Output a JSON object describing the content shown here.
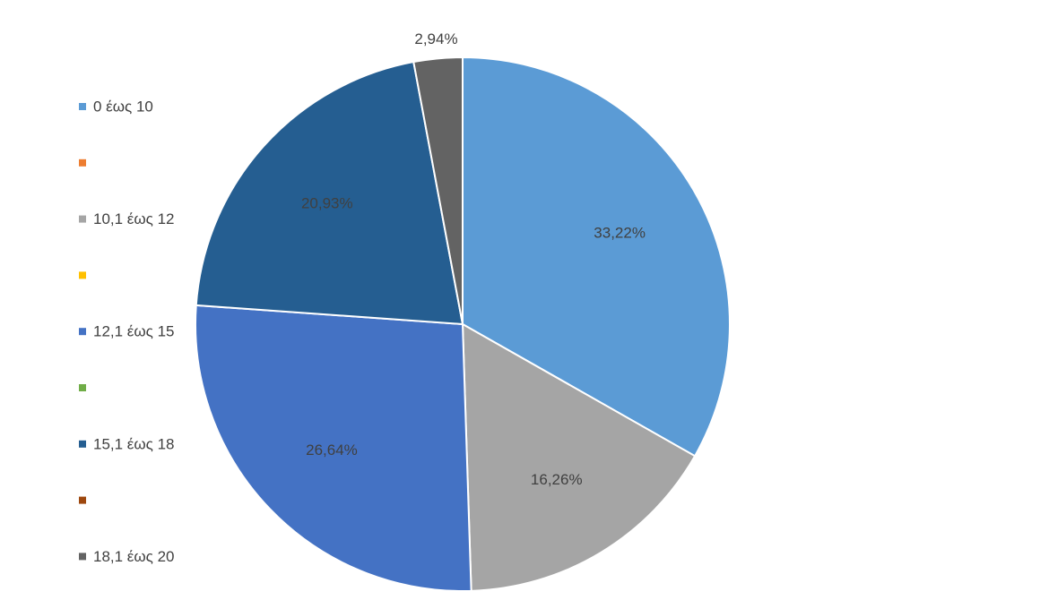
{
  "chart_data": {
    "type": "pie",
    "categories": [
      "0 έως 10",
      "",
      "10,1 έως 12",
      "",
      "12,1 έως 15",
      "",
      "15,1 έως 18",
      "",
      "18,1 έως 20",
      ""
    ],
    "values": [
      33.22,
      0,
      16.26,
      0,
      26.64,
      0,
      20.93,
      0,
      2.94,
      0
    ],
    "data_labels": [
      "33,22%",
      "",
      "16,26%",
      "",
      "26,64%",
      "",
      "20,93%",
      "",
      "2,94%",
      ""
    ],
    "colors": [
      "#5b9bd5",
      "#ed7d31",
      "#a5a5a5",
      "#ffc000",
      "#4472c4",
      "#70ad47",
      "#255e91",
      "#9e480e",
      "#636363",
      "#997300"
    ],
    "legend_position": "left",
    "title": "",
    "start_angle": "12 o'clock",
    "direction": "clockwise"
  }
}
